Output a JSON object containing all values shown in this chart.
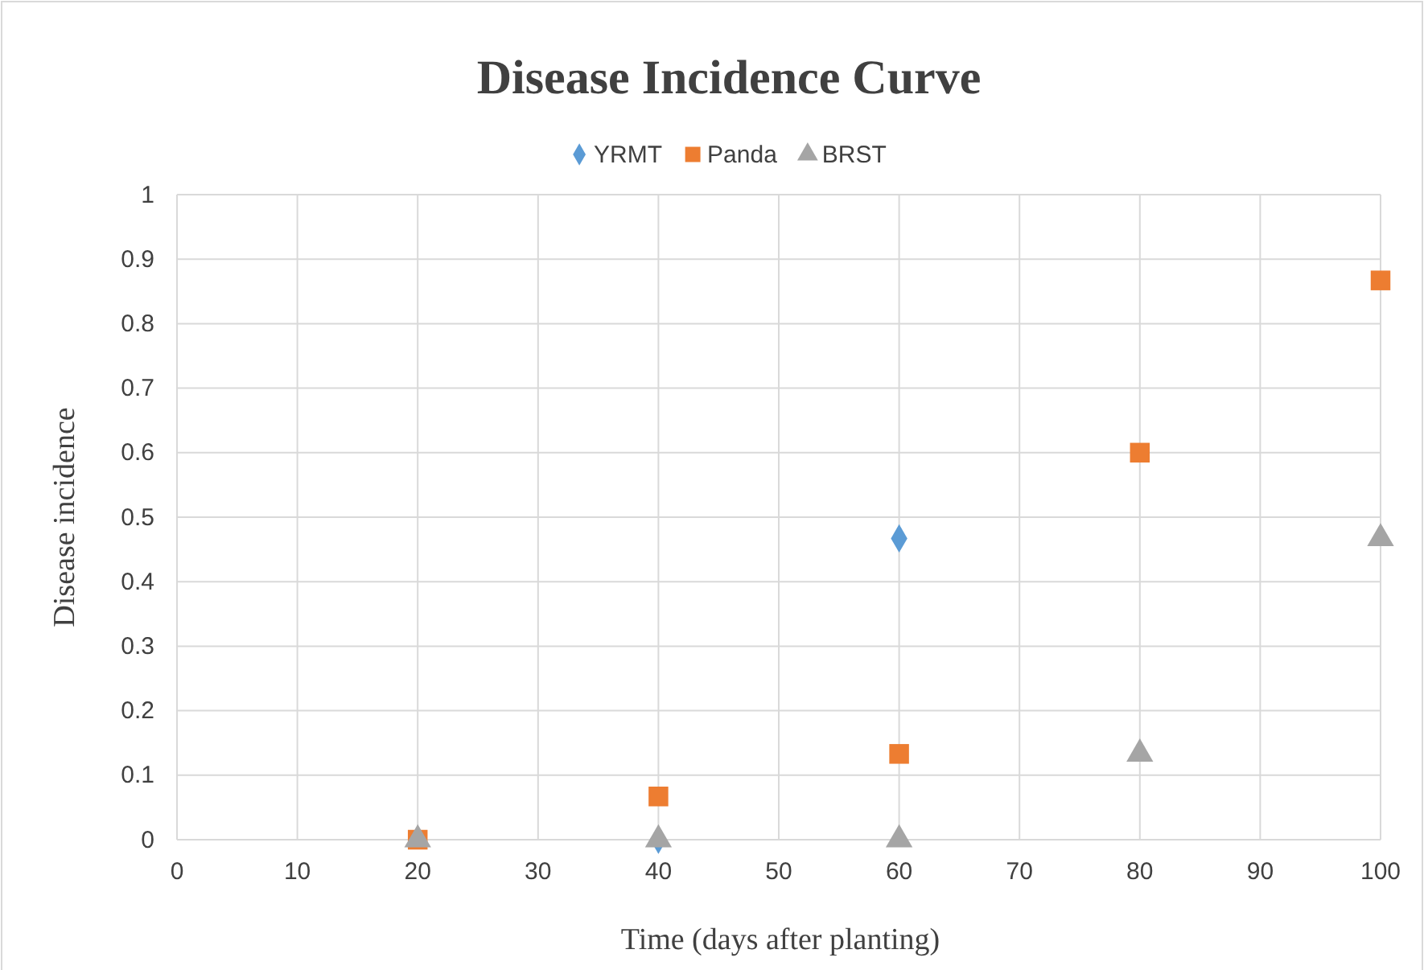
{
  "chart_data": {
    "type": "scatter",
    "title": "Disease Incidence Curve",
    "xlabel": "Time (days after planting)",
    "ylabel": "Disease incidence",
    "xlim": [
      0,
      100
    ],
    "xticks": [
      0,
      10,
      20,
      30,
      40,
      50,
      60,
      70,
      80,
      90,
      100
    ],
    "ylim": [
      0,
      1
    ],
    "yticks": [
      0,
      0.1,
      0.2,
      0.3,
      0.4,
      0.5,
      0.6,
      0.7,
      0.8,
      0.9,
      1
    ],
    "grid": true,
    "legend": "top",
    "series": [
      {
        "name": "YRMT",
        "color": "#5b9bd5",
        "marker": "diamond",
        "x": [
          40,
          60
        ],
        "values": [
          0,
          0.467
        ]
      },
      {
        "name": "Panda",
        "color": "#ed7d31",
        "marker": "square",
        "x": [
          20,
          40,
          60,
          80,
          100
        ],
        "values": [
          0,
          0.067,
          0.133,
          0.6,
          0.867
        ]
      },
      {
        "name": "BRST",
        "color": "#a5a5a5",
        "marker": "triangle",
        "x": [
          20,
          40,
          60,
          80,
          100
        ],
        "values": [
          0,
          0,
          0,
          0.133,
          0.467
        ]
      }
    ]
  }
}
